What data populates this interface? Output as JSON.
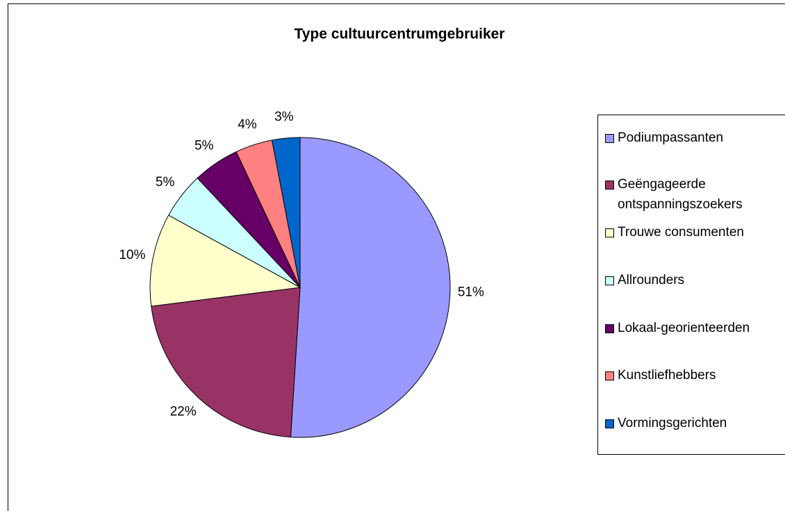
{
  "chart_data": {
    "type": "pie",
    "title": "Type cultuurcentrumgebruiker",
    "categories": [
      "Podiumpassanten",
      "Geëngageerde ontspanningszoekers",
      "Trouwe consumenten",
      "Allrounders",
      "Lokaal-georienteerden",
      "Kunstliefhebbers",
      "Vormingsgerichten"
    ],
    "values": [
      51,
      22,
      10,
      5,
      5,
      4,
      3
    ],
    "value_labels": [
      "51%",
      "22%",
      "10%",
      "5%",
      "5%",
      "4%",
      "3%"
    ],
    "colors": [
      "#9999ff",
      "#993366",
      "#ffffcc",
      "#ccffff",
      "#660066",
      "#ff8080",
      "#0066cc"
    ],
    "legend": "right"
  }
}
